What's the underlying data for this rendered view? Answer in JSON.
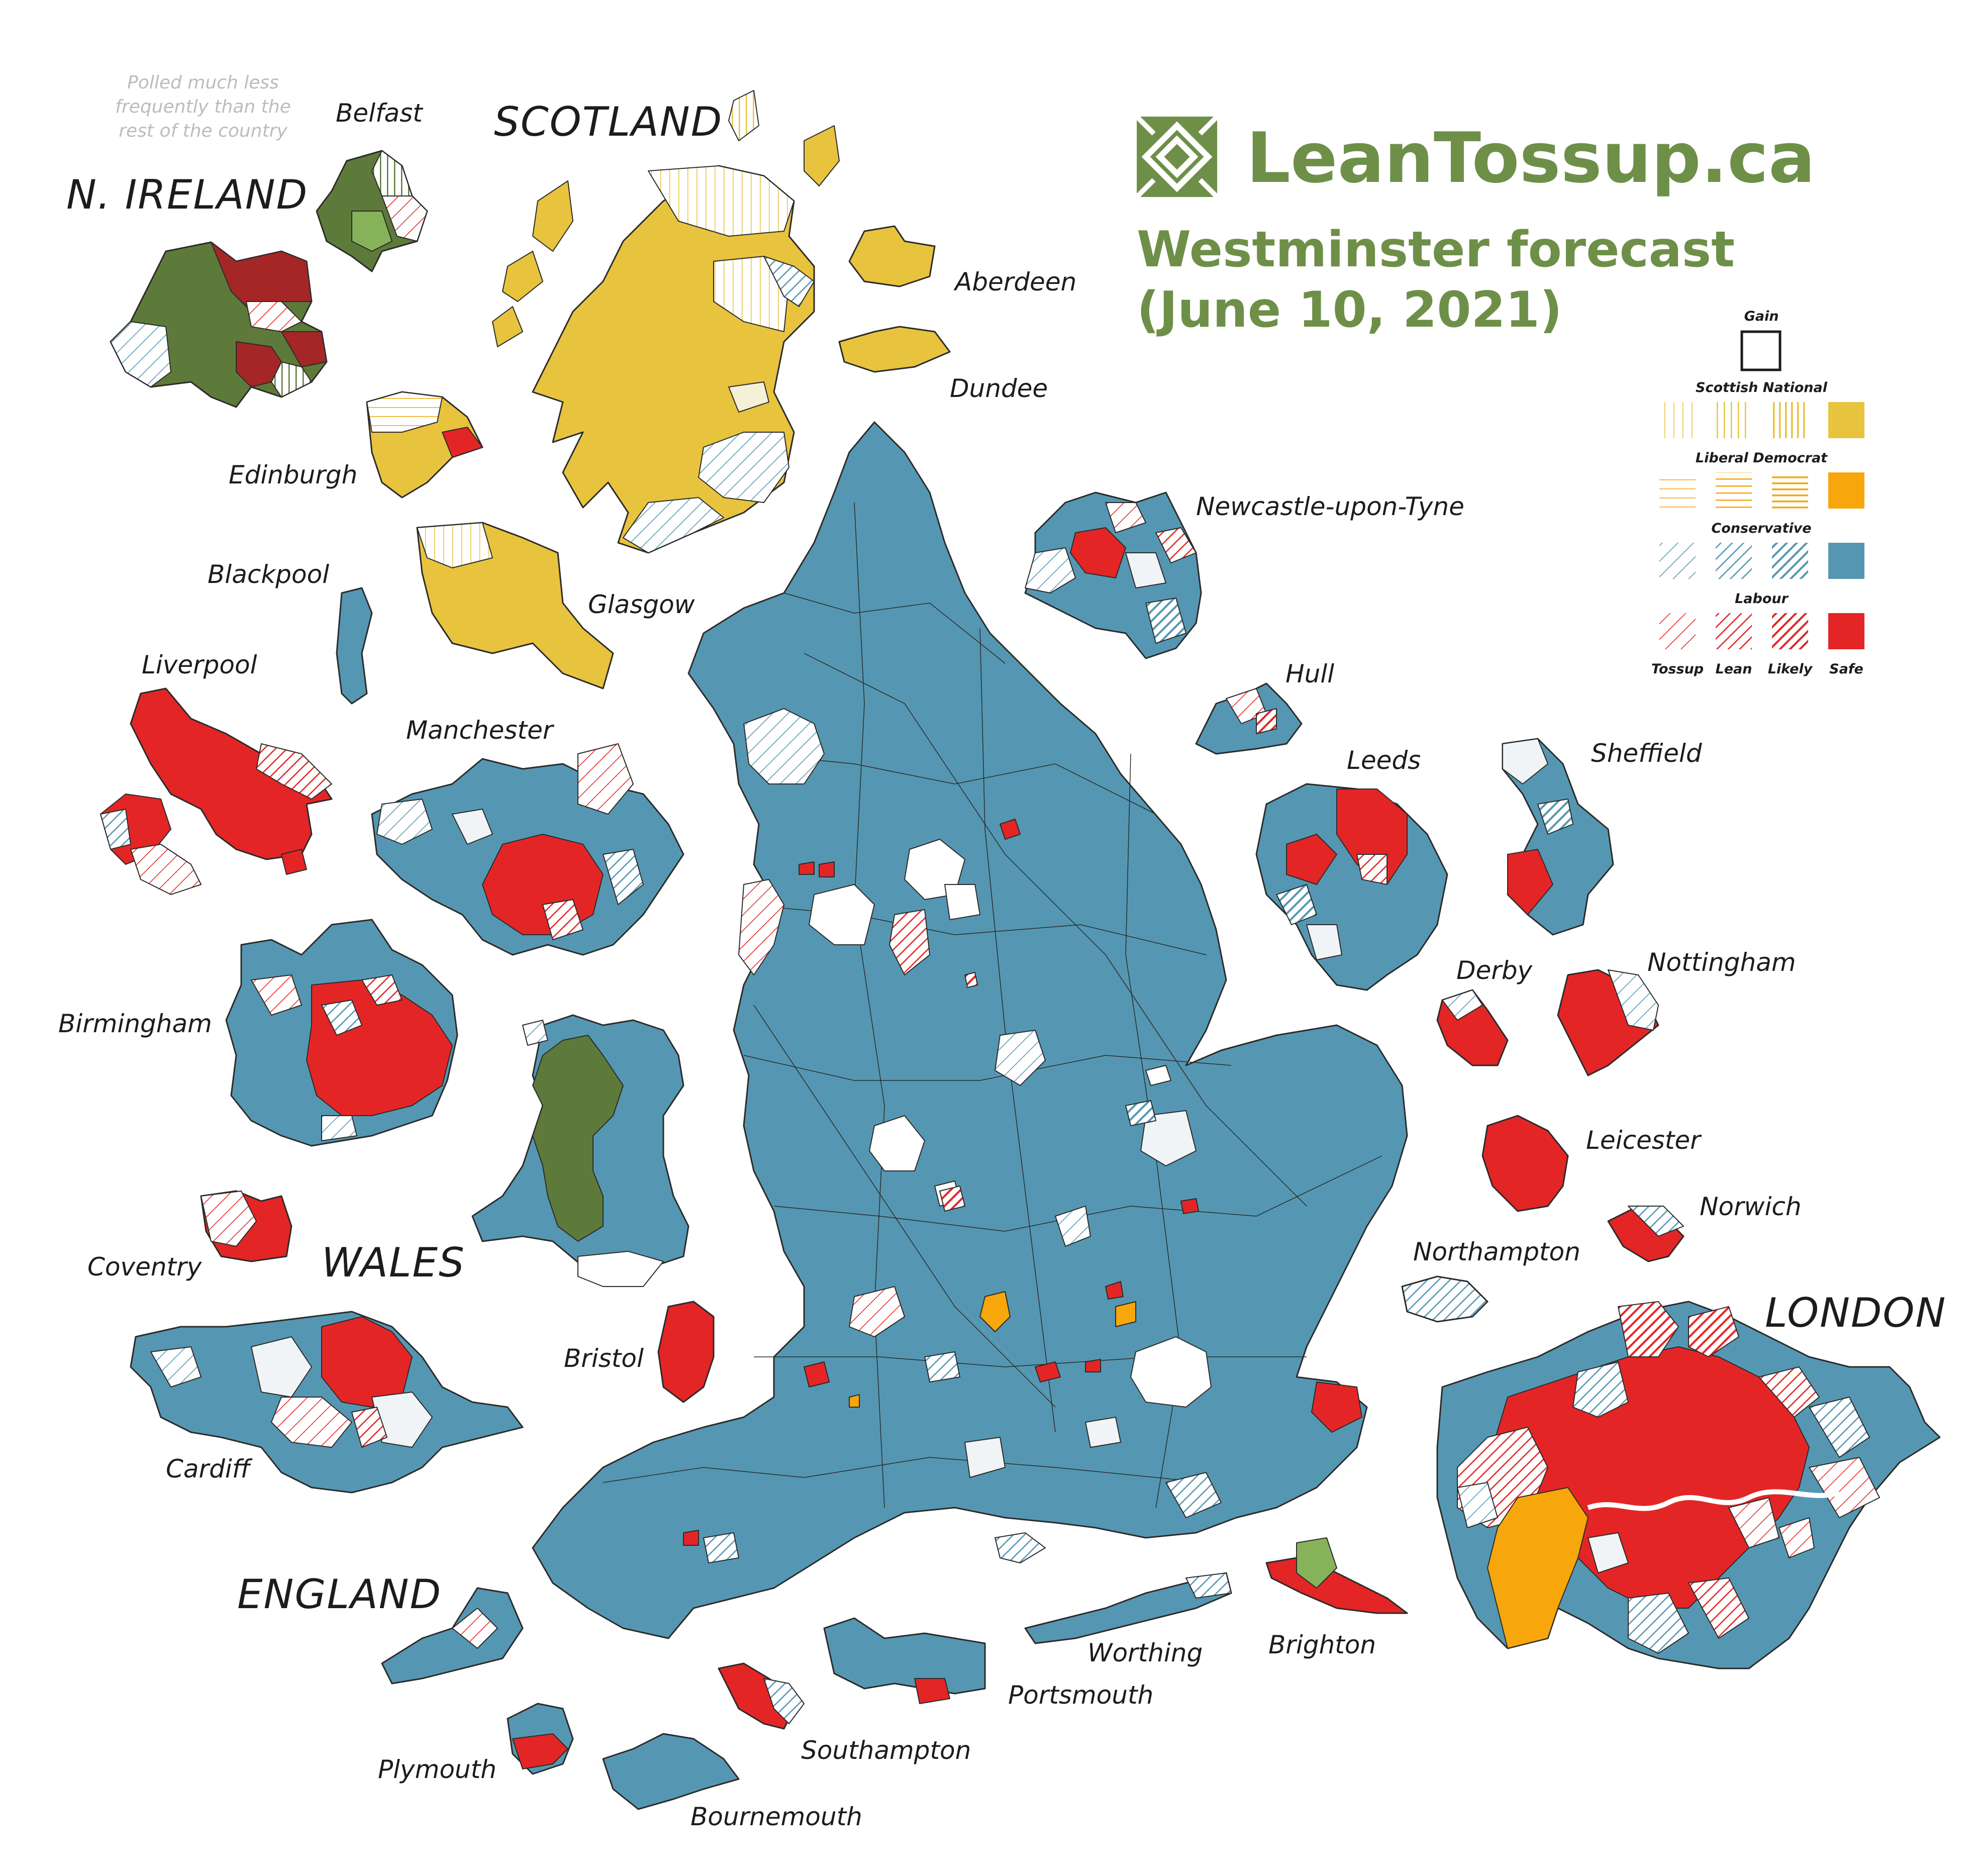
{
  "brand": {
    "site_name": "LeanTossup.ca",
    "subtitle_line1": "Westminster forecast",
    "subtitle_line2": "(June 10, 2021)",
    "logo_icon": "leantossup-diamond-logo-icon",
    "brand_color": "#6e8f48"
  },
  "note": {
    "line1": "Polled much less",
    "line2": "frequently than the",
    "line3": "rest of the country"
  },
  "regions": {
    "scotland": "SCOTLAND",
    "n_ireland": "N. IRELAND",
    "wales": "WALES",
    "england": "ENGLAND",
    "london": "LONDON"
  },
  "cities": {
    "belfast": "Belfast",
    "aberdeen": "Aberdeen",
    "dundee": "Dundee",
    "edinburgh": "Edinburgh",
    "glasgow": "Glasgow",
    "blackpool": "Blackpool",
    "liverpool": "Liverpool",
    "manchester": "Manchester",
    "newcastle": "Newcastle-upon-Tyne",
    "hull": "Hull",
    "leeds": "Leeds",
    "sheffield": "Sheffield",
    "birmingham": "Birmingham",
    "derby": "Derby",
    "nottingham": "Nottingham",
    "coventry": "Coventry",
    "leicester": "Leicester",
    "norwich": "Norwich",
    "northampton": "Northampton",
    "bristol": "Bristol",
    "cardiff": "Cardiff",
    "plymouth": "Plymouth",
    "southampton": "Southampton",
    "bournemouth": "Bournemouth",
    "portsmouth": "Portsmouth",
    "worthing": "Worthing",
    "brighton": "Brighton"
  },
  "legend": {
    "gain_label": "Gain",
    "parties": [
      {
        "name": "Scottish National",
        "color": "#e8c33e"
      },
      {
        "name": "Liberal Democrat",
        "color": "#f7a70b"
      },
      {
        "name": "Conservative",
        "color": "#5597b2"
      },
      {
        "name": "Labour",
        "color": "#e42525"
      }
    ],
    "levels": [
      "Tossup",
      "Lean",
      "Likely",
      "Safe"
    ]
  },
  "party_colors": {
    "snp": "#e8c33e",
    "libdem": "#f7a70b",
    "conservative": "#5597b2",
    "labour": "#e42525",
    "nationalist_green": "#5e7a3a",
    "unionist_red": "#a52626",
    "alliance_green": "#86b35a",
    "plaid": "#5e7a3a",
    "brighton_green": "#86b35a"
  }
}
